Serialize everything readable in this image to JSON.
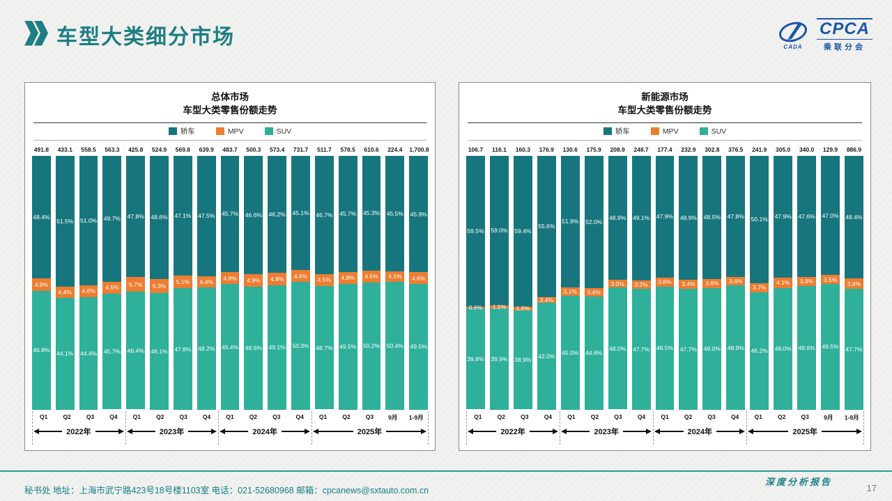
{
  "header": {
    "title": "车型大类细分市场",
    "logo": {
      "cpca": "CPCA",
      "sub": "乘联分会",
      "emblem": "CADA"
    }
  },
  "chart_data": [
    {
      "type": "bar",
      "stacked": true,
      "title": "总体市场",
      "subtitle": "车型大类零售份额走势",
      "legend_position": "top",
      "categories": [
        "Q1",
        "Q2",
        "Q3",
        "Q4",
        "Q1",
        "Q2",
        "Q3",
        "Q4",
        "Q1",
        "Q2",
        "Q3",
        "Q4",
        "Q1",
        "Q2",
        "Q3",
        "9月",
        "1-9月"
      ],
      "totals": [
        "491.8",
        "433.1",
        "558.5",
        "563.3",
        "425.8",
        "524.9",
        "569.8",
        "639.9",
        "483.7",
        "500.3",
        "573.4",
        "731.7",
        "511.7",
        "578.5",
        "610.6",
        "224.4",
        "1,700.8"
      ],
      "series": [
        {
          "name": "轿车",
          "color": "#17767d",
          "values": [
            48.4,
            51.5,
            51.0,
            49.7,
            47.8,
            48.6,
            47.1,
            47.5,
            45.7,
            46.6,
            46.2,
            45.1,
            46.7,
            45.7,
            45.3,
            45.5,
            45.9
          ]
        },
        {
          "name": "MPV",
          "color": "#ed7d31",
          "values": [
            4.9,
            4.4,
            4.6,
            4.5,
            5.7,
            5.3,
            5.1,
            4.4,
            4.9,
            4.9,
            4.8,
            4.6,
            4.5,
            4.8,
            4.5,
            4.1,
            4.6
          ]
        },
        {
          "name": "SUV",
          "color": "#2eb09a",
          "values": [
            46.8,
            44.1,
            44.4,
            45.7,
            46.4,
            46.1,
            47.8,
            48.2,
            49.4,
            48.6,
            49.1,
            50.3,
            48.7,
            49.5,
            50.2,
            50.4,
            49.5
          ]
        }
      ],
      "year_groups": [
        {
          "label": "2022年",
          "span": 4
        },
        {
          "label": "2023年",
          "span": 4
        },
        {
          "label": "2024年",
          "span": 4
        },
        {
          "label": "2025年",
          "span": 5
        }
      ],
      "ylim": [
        0,
        100
      ]
    },
    {
      "type": "bar",
      "stacked": true,
      "title": "新能源市场",
      "subtitle": "车型大类零售份额走势",
      "legend_position": "top",
      "categories": [
        "Q1",
        "Q2",
        "Q3",
        "Q4",
        "Q1",
        "Q2",
        "Q3",
        "Q4",
        "Q1",
        "Q2",
        "Q3",
        "Q4",
        "Q1",
        "Q2",
        "Q3",
        "9月",
        "1-9月"
      ],
      "totals": [
        "106.7",
        "116.1",
        "160.3",
        "176.9",
        "130.6",
        "175.9",
        "208.9",
        "248.7",
        "177.4",
        "232.9",
        "302.8",
        "376.5",
        "241.9",
        "305.0",
        "340.0",
        "129.9",
        "886.9"
      ],
      "series": [
        {
          "name": "轿车",
          "color": "#17767d",
          "values": [
            59.5,
            59.0,
            59.4,
            55.6,
            51.9,
            52.0,
            48.9,
            49.1,
            47.9,
            48.9,
            48.5,
            47.8,
            50.1,
            47.9,
            47.6,
            47.0,
            48.4
          ]
        },
        {
          "name": "MPV",
          "color": "#ed7d31",
          "values": [
            0.6,
            1.1,
            1.6,
            2.4,
            3.1,
            3.4,
            3.0,
            3.2,
            3.6,
            3.4,
            3.6,
            3.4,
            3.7,
            4.1,
            3.8,
            3.5,
            3.9
          ]
        },
        {
          "name": "SUV",
          "color": "#2eb09a",
          "values": [
            39.8,
            39.9,
            38.9,
            42.0,
            45.0,
            44.6,
            48.0,
            47.7,
            48.5,
            47.7,
            48.0,
            48.9,
            46.2,
            48.0,
            48.6,
            49.5,
            47.7
          ]
        }
      ],
      "year_groups": [
        {
          "label": "2022年",
          "span": 4
        },
        {
          "label": "2023年",
          "span": 4
        },
        {
          "label": "2024年",
          "span": 4
        },
        {
          "label": "2025年",
          "span": 5
        }
      ],
      "ylim": [
        0,
        100
      ]
    }
  ],
  "footer": {
    "info": "秘书处  地址：上海市武宁路423号18号楼1103室  电话：021-52680968  邮箱：",
    "email": "cpcanews@sxtauto.com.cn",
    "report_label": "深度分析报告",
    "page_number": "17"
  },
  "colors": {
    "accent_teal": "#1d7e84",
    "sedan": "#17767d",
    "mpv": "#ed7d31",
    "suv": "#2eb09a",
    "logo_blue": "#1a56a8"
  }
}
